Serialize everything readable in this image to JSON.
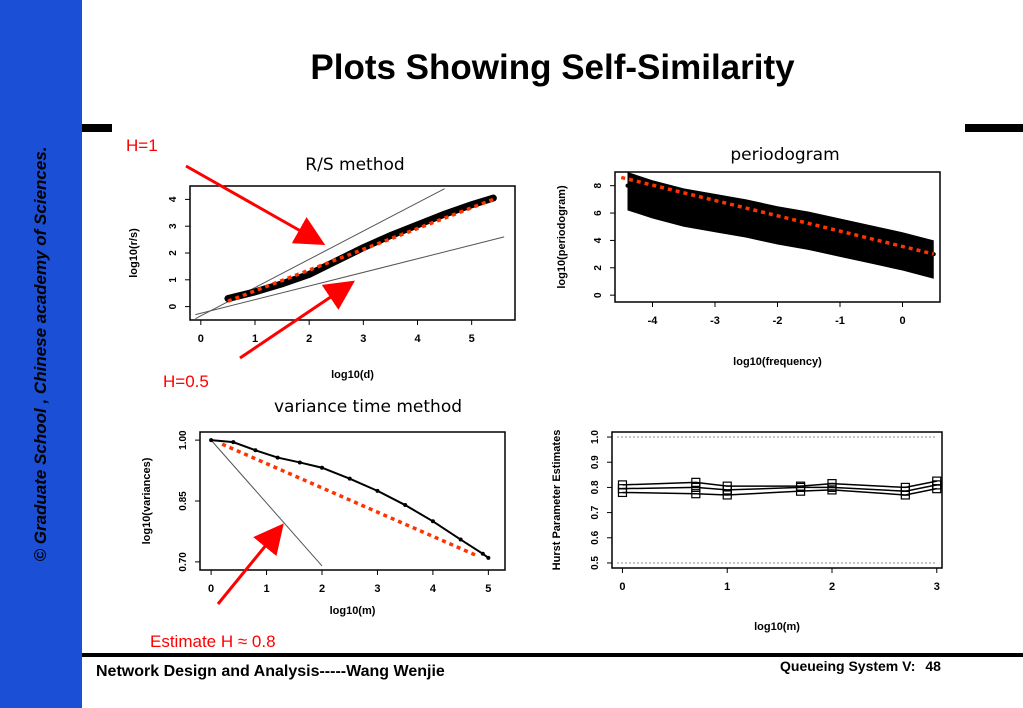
{
  "slide": {
    "title": "Plots Showing Self-Similarity",
    "sidebar_text": "© Graduate School , Chinese academy of Sciences.",
    "footer_left": "Network Design and Analysis-----Wang Wenjie",
    "footer_right": "Queueing System V:",
    "page_number": "48",
    "annotations": {
      "h1": "H=1",
      "h05": "H=0.5",
      "estimate": "Estimate H ≈ 0.8"
    },
    "colors": {
      "sidebar": "#1a4fd6",
      "annotation": "#ff0000",
      "fit_line": "#ff3300"
    }
  },
  "chart_data": [
    {
      "type": "scatter",
      "title": "R/S method",
      "xlabel": "log10(d)",
      "ylabel": "log10(r/s)",
      "xticks": [
        "0",
        "1",
        "2",
        "3",
        "4",
        "5"
      ],
      "yticks": [
        "0",
        "1",
        "2",
        "3",
        "4"
      ],
      "xlim": [
        -0.2,
        5.8
      ],
      "ylim": [
        -0.5,
        4.5
      ],
      "series": [
        {
          "values": [
            [
              0.5,
              0.3
            ],
            [
              1.0,
              0.55
            ],
            [
              1.5,
              0.85
            ],
            [
              2.0,
              1.2
            ],
            [
              2.5,
              1.7
            ],
            [
              3.0,
              2.2
            ],
            [
              3.5,
              2.65
            ],
            [
              4.0,
              3.05
            ],
            [
              4.5,
              3.45
            ],
            [
              5.0,
              3.8
            ],
            [
              5.4,
              4.05
            ]
          ]
        }
      ],
      "fit_line": [
        [
          0.5,
          0.2
        ],
        [
          5.4,
          4.0
        ]
      ],
      "reference_lines": [
        {
          "label": "H=1",
          "points": [
            [
              -0.1,
              -0.45
            ],
            [
              4.5,
              4.4
            ]
          ]
        },
        {
          "label": "H=0.5",
          "points": [
            [
              -0.1,
              -0.3
            ],
            [
              5.6,
              2.6
            ]
          ]
        }
      ]
    },
    {
      "type": "scatter",
      "title": "periodogram",
      "xlabel": "log10(frequency)",
      "ylabel": "log10(periodogram)",
      "xticks": [
        "-4",
        "-3",
        "-2",
        "-1",
        "0"
      ],
      "yticks": [
        "0",
        "2",
        "4",
        "6",
        "8"
      ],
      "xlim": [
        -4.6,
        0.6
      ],
      "ylim": [
        -0.5,
        9.0
      ],
      "series": [
        {
          "values": [
            [
              -4.4,
              8.0
            ],
            [
              -4.0,
              7.4
            ],
            [
              -3.5,
              6.8
            ],
            [
              -3.0,
              6.4
            ],
            [
              -2.5,
              6.0
            ],
            [
              -2.0,
              5.5
            ],
            [
              -1.5,
              5.1
            ],
            [
              -1.0,
              4.6
            ],
            [
              -0.5,
              4.1
            ],
            [
              0.0,
              3.6
            ],
            [
              0.5,
              3.0
            ]
          ]
        }
      ],
      "fit_line": [
        [
          -4.5,
          8.6
        ],
        [
          0.5,
          3.0
        ]
      ]
    },
    {
      "type": "scatter",
      "title": "variance time method",
      "xlabel": "log10(m)",
      "ylabel": "log10(variances)",
      "xticks": [
        "0",
        "1",
        "2",
        "3",
        "4",
        "5"
      ],
      "yticks": [
        "0.70",
        "0.85",
        "1.00"
      ],
      "xlim": [
        -0.2,
        5.3
      ],
      "ylim": [
        0.68,
        1.02
      ],
      "series": [
        {
          "values": [
            [
              0.0,
              1.0
            ],
            [
              0.4,
              0.995
            ],
            [
              0.8,
              0.975
            ],
            [
              1.2,
              0.957
            ],
            [
              1.6,
              0.945
            ],
            [
              2.0,
              0.932
            ],
            [
              2.5,
              0.905
            ],
            [
              3.0,
              0.875
            ],
            [
              3.5,
              0.84
            ],
            [
              4.0,
              0.8
            ],
            [
              4.5,
              0.755
            ],
            [
              4.9,
              0.72
            ],
            [
              5.0,
              0.71
            ]
          ]
        }
      ],
      "fit_line": [
        [
          0.2,
          0.99
        ],
        [
          4.8,
          0.715
        ]
      ],
      "reference_lines": [
        {
          "label": "H=0.5",
          "points": [
            [
              0.0,
              1.0
            ],
            [
              2.0,
              0.69
            ]
          ]
        }
      ]
    },
    {
      "type": "line",
      "ylabel": "Hurst Parameter Estimates",
      "xlabel": "log10(m)",
      "xticks": [
        "0",
        "1",
        "2",
        "3"
      ],
      "yticks": [
        "0.5",
        "0.6",
        "0.7",
        "0.8",
        "0.9",
        "1.0"
      ],
      "xlim": [
        -0.1,
        3.05
      ],
      "ylim": [
        0.48,
        1.02
      ],
      "categories": [
        0,
        0.7,
        1.0,
        1.7,
        2.0,
        2.7,
        3.0
      ],
      "series": [
        {
          "values": [
            0.81,
            0.82,
            0.805,
            0.805,
            0.815,
            0.8,
            0.825
          ]
        },
        {
          "values": [
            0.795,
            0.8,
            0.79,
            0.8,
            0.8,
            0.785,
            0.81
          ]
        },
        {
          "values": [
            0.78,
            0.775,
            0.77,
            0.785,
            0.79,
            0.77,
            0.795
          ]
        }
      ],
      "bounds": [
        0.5,
        1.0
      ]
    }
  ]
}
